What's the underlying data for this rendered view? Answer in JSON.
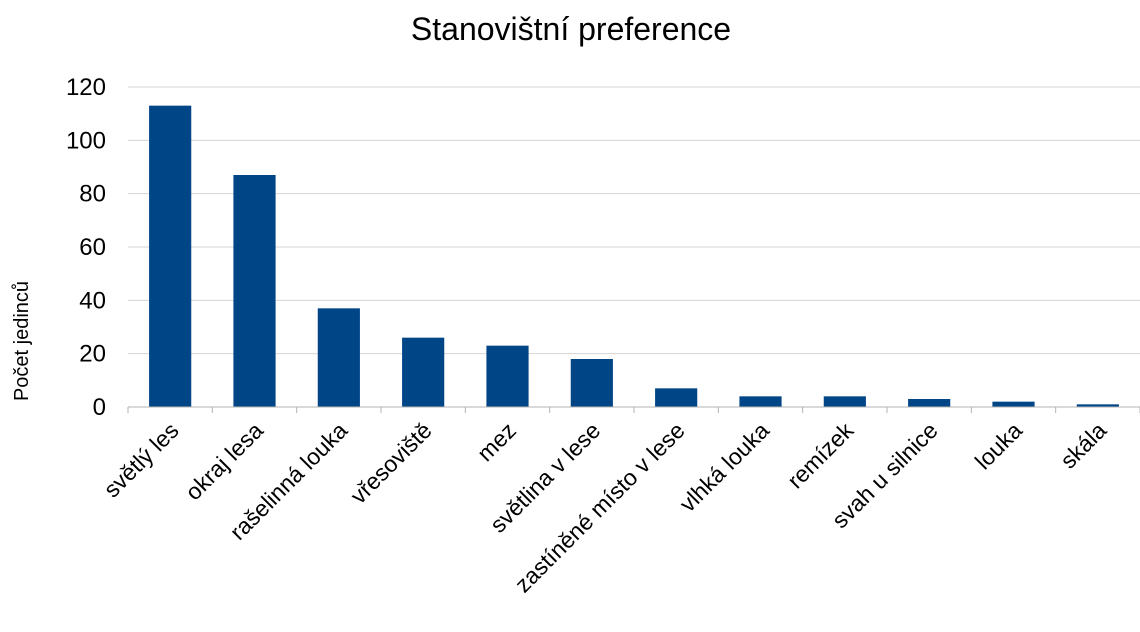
{
  "chart_data": {
    "type": "bar",
    "title": "Stanovištní preference",
    "xlabel": "",
    "ylabel": "Počet jedinců",
    "categories": [
      "světlý les",
      "okraj lesa",
      "rašelinná louka",
      "vřesoviště",
      "mez",
      "světlina v lese",
      "zastíněné místo v lese",
      "vlhká louka",
      "remízek",
      "svah u silnice",
      "louka",
      "skála"
    ],
    "values": [
      113,
      87,
      37,
      26,
      23,
      18,
      7,
      4,
      4,
      3,
      2,
      1
    ],
    "ylim": [
      0,
      120
    ],
    "yticks": [
      0,
      20,
      40,
      60,
      80,
      100,
      120
    ],
    "grid": true,
    "legend": "none",
    "bar_color": "#004586"
  }
}
